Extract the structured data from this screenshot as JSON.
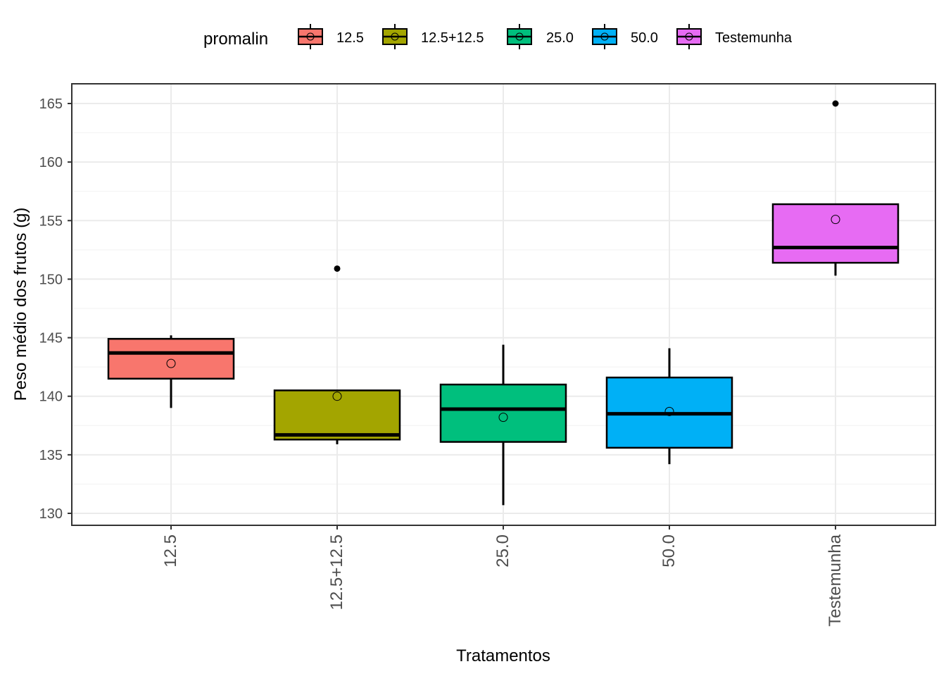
{
  "chart_data": {
    "type": "boxplot",
    "xlabel": "Tratamentos",
    "ylabel": "Peso médio dos frutos (g)",
    "ylim": [
      129,
      166.7
    ],
    "y_ticks": [
      130,
      135,
      140,
      145,
      150,
      155,
      160,
      165
    ],
    "grid": true,
    "legend": {
      "title": "promalin",
      "position": "top",
      "entries": [
        "12.5",
        "12.5+12.5",
        "25.0",
        "50.0",
        "Testemunha"
      ]
    },
    "categories": [
      "12.5",
      "12.5+12.5",
      "25.0",
      "50.0",
      "Testemunha"
    ],
    "series": [
      {
        "name": "12.5",
        "color": "#F8766D",
        "whisker_low": 139.0,
        "q1": 141.5,
        "median": 143.7,
        "q3": 144.9,
        "whisker_high": 145.2,
        "mean": 142.8,
        "outliers": []
      },
      {
        "name": "12.5+12.5",
        "color": "#A3A500",
        "whisker_low": 135.9,
        "q1": 136.3,
        "median": 136.7,
        "q3": 140.5,
        "whisker_high": 140.5,
        "mean": 140.0,
        "outliers": [
          150.9
        ]
      },
      {
        "name": "25.0",
        "color": "#00BF7D",
        "whisker_low": 130.7,
        "q1": 136.1,
        "median": 138.9,
        "q3": 141.0,
        "whisker_high": 144.4,
        "mean": 138.2,
        "outliers": []
      },
      {
        "name": "50.0",
        "color": "#00B0F6",
        "whisker_low": 134.2,
        "q1": 135.6,
        "median": 138.5,
        "q3": 141.6,
        "whisker_high": 144.1,
        "mean": 138.7,
        "outliers": []
      },
      {
        "name": "Testemunha",
        "color": "#E76BF3",
        "whisker_low": 150.3,
        "q1": 151.4,
        "median": 152.7,
        "q3": 156.4,
        "whisker_high": 156.4,
        "mean": 155.1,
        "outliers": [
          165.0
        ]
      }
    ]
  }
}
